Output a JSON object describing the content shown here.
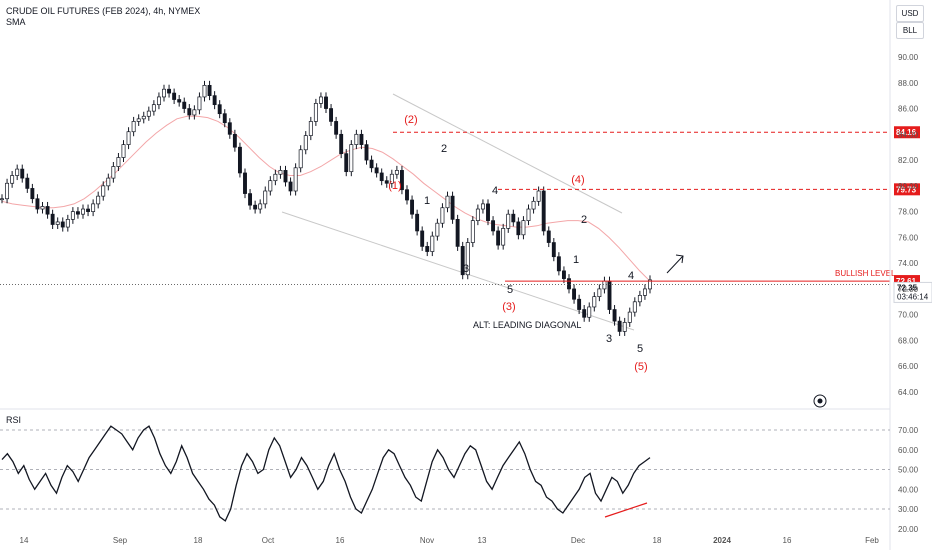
{
  "header": {
    "title": "CRUDE OIL FUTURES (FEB 2024), 4h, NYMEX",
    "indicator": "SMA"
  },
  "rsi_title": "RSI",
  "units": {
    "currency": "USD",
    "unit": "BLL"
  },
  "colors": {
    "candle": "#131722",
    "sma": "#f3a6a8",
    "annotation_red": "#e51c1c",
    "wedge": "#c8c8c8",
    "axis_text": "#555555"
  },
  "chart_data": [
    {
      "type": "line",
      "name": "price",
      "ylim": [
        62,
        92
      ],
      "y_ticks": [
        "90.00",
        "88.00",
        "86.00",
        "84.00",
        "82.00",
        "80.00",
        "78.00",
        "76.00",
        "74.00",
        "72.00",
        "70.00",
        "68.00",
        "66.00",
        "64.00"
      ],
      "x_ticks": [
        "14",
        "Sep",
        "18",
        "Oct",
        "16",
        "Nov",
        "13",
        "Dec",
        "18",
        "2024",
        "16",
        "Feb"
      ],
      "series": [
        {
          "values": [
            79.0,
            80.2,
            80.8,
            81.3,
            80.6,
            79.8,
            79.0,
            78.2,
            78.4,
            77.8,
            77.0,
            77.2,
            76.8,
            77.4,
            78.0,
            77.8,
            78.2,
            78.0,
            78.6,
            79.2,
            80.0,
            80.6,
            81.5,
            82.2,
            83.2,
            84.2,
            85.0,
            85.2,
            85.4,
            85.8,
            86.3,
            86.9,
            87.5,
            87.2,
            86.7,
            86.5,
            86.0,
            85.5,
            85.9,
            86.9,
            87.8,
            87.0,
            86.3,
            85.6,
            84.9,
            84.0,
            83.0,
            81.0,
            79.4,
            78.5,
            78.2,
            78.6,
            79.6,
            80.4,
            80.9,
            81.2,
            80.3,
            79.6,
            81.4,
            82.8,
            83.9,
            85.0,
            86.4,
            86.9,
            86.0,
            85.0,
            84.0,
            82.5,
            81.1,
            83.2,
            84.0,
            83.2,
            82.0,
            81.4,
            81.0,
            80.4,
            80.2,
            80.9,
            81.2,
            79.7,
            78.9,
            77.8,
            76.5,
            75.3,
            74.9,
            76.1,
            77.1,
            78.3,
            79.2,
            77.4,
            75.3,
            73.1,
            75.6,
            77.3,
            78.2,
            78.6,
            77.3,
            76.5,
            75.4,
            76.7,
            77.8,
            77.2,
            76.2,
            77.3,
            78.2,
            78.8,
            79.6,
            76.5,
            75.6,
            74.5,
            73.4,
            72.8,
            72.0,
            71.2,
            70.4,
            69.8,
            70.6,
            71.4,
            72.0,
            72.6,
            70.4,
            69.5,
            68.7,
            69.4,
            70.2,
            71.0,
            71.5,
            72.0,
            72.7
          ],
          "note": "4h closes, approximate"
        },
        {
          "name": "SMA",
          "values": [
            78.8,
            78.6,
            78.5,
            78.4,
            78.3,
            78.3,
            78.4,
            78.6,
            79.0,
            79.6,
            80.3,
            81.0,
            81.8,
            82.6,
            83.4,
            84.1,
            84.7,
            85.2,
            85.4,
            85.4,
            85.3,
            85.0,
            84.5,
            83.8,
            83.0,
            82.2,
            81.5,
            81.0,
            80.8,
            80.8,
            81.1,
            81.5,
            82.0,
            82.5,
            82.8,
            83.0,
            82.9,
            82.6,
            82.1,
            81.5,
            80.9,
            80.2,
            79.6,
            79.0,
            78.4,
            77.9,
            77.5,
            77.2,
            77.0,
            76.9,
            76.8,
            76.8,
            76.9,
            77.1,
            77.2,
            77.3,
            77.3,
            77.2,
            76.7,
            76.0,
            75.2,
            74.3,
            73.4,
            72.6
          ]
        }
      ],
      "horizontal_levels": [
        {
          "value": 84.16,
          "label": "84.16",
          "style": "dashed"
        },
        {
          "value": 79.73,
          "label": "79.73",
          "style": "dashed"
        },
        {
          "value": 72.61,
          "label": "72.61",
          "style": "solid",
          "name": "BULLISH LEVEL"
        },
        {
          "value": 72.35,
          "label": "72.35",
          "countdown": "03:46:14"
        }
      ],
      "annotations": [
        "(2)",
        "(1)",
        "2",
        "1",
        "4",
        "3",
        "5",
        "(3)",
        "(4)",
        "2",
        "1",
        "4",
        "3",
        "5",
        "(5)",
        "ALT: LEADING DIAGONAL",
        "BULLISH LEVEL"
      ]
    },
    {
      "type": "line",
      "name": "RSI",
      "ylim": [
        20,
        80
      ],
      "y_ticks": [
        "70.00",
        "60.00",
        "50.00",
        "40.00",
        "30.00",
        "20.00"
      ],
      "levels": [
        70,
        50,
        30
      ],
      "series": [
        {
          "values": [
            55,
            58,
            54,
            48,
            52,
            45,
            40,
            44,
            48,
            42,
            38,
            46,
            52,
            49,
            44,
            50,
            56,
            60,
            64,
            68,
            72,
            70,
            68,
            64,
            60,
            66,
            70,
            72,
            66,
            58,
            52,
            48,
            54,
            62,
            56,
            48,
            44,
            40,
            35,
            32,
            26,
            24,
            30,
            42,
            52,
            58,
            54,
            48,
            50,
            60,
            66,
            62,
            54,
            46,
            50,
            56,
            52,
            46,
            40,
            44,
            52,
            58,
            50,
            44,
            36,
            30,
            28,
            34,
            40,
            48,
            56,
            60,
            58,
            52,
            46,
            42,
            36,
            34,
            44,
            54,
            60,
            56,
            50,
            46,
            52,
            58,
            62,
            60,
            52,
            44,
            40,
            46,
            52,
            56,
            60,
            64,
            58,
            50,
            44,
            42,
            36,
            34,
            30,
            28,
            32,
            36,
            40,
            46,
            48,
            38,
            34,
            40,
            46,
            44,
            38,
            42,
            48,
            52,
            54,
            56
          ]
        }
      ],
      "divergence_line": true
    }
  ]
}
